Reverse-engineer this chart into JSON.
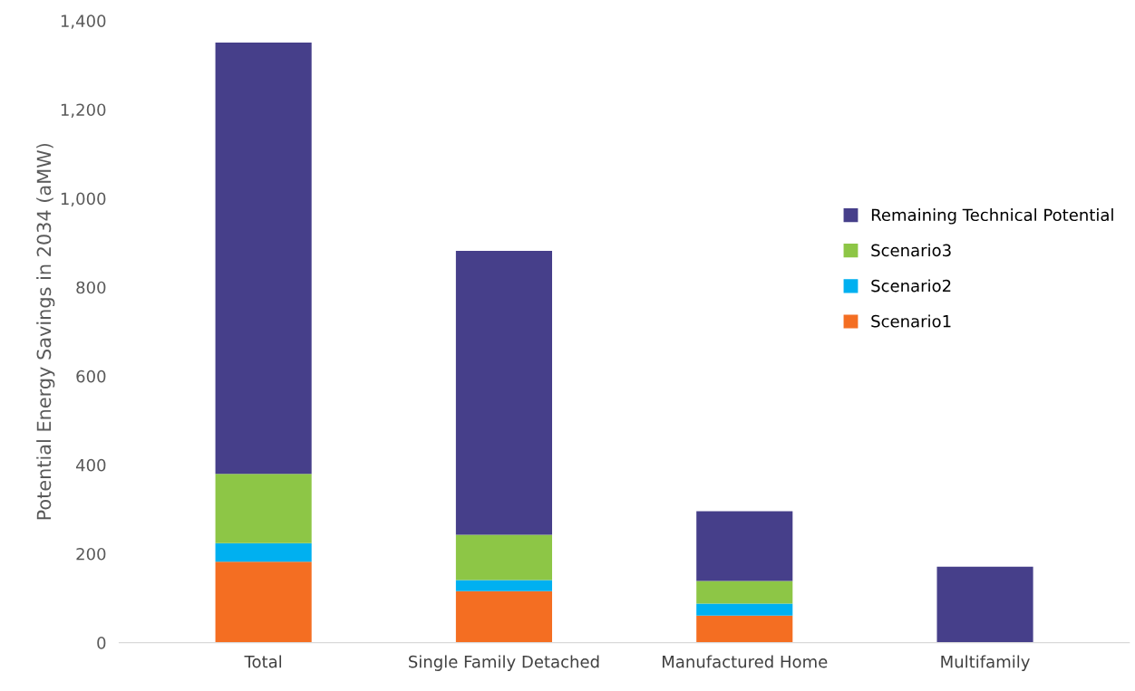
{
  "chart_data": {
    "type": "bar",
    "stacked": true,
    "ylabel": "Potential Energy Savings in 2034 (aMW)",
    "categories": [
      "Total",
      "Single Family Detached",
      "Manufactured Home",
      "Multifamily"
    ],
    "series": [
      {
        "name": "Scenario1",
        "color": "#f46e22",
        "values": [
          182,
          116,
          61,
          0
        ]
      },
      {
        "name": "Scenario2",
        "color": "#00b0f0",
        "values": [
          42,
          25,
          27,
          0
        ]
      },
      {
        "name": "Scenario3",
        "color": "#8dc646",
        "values": [
          156,
          102,
          51,
          0
        ]
      },
      {
        "name": "Remaining Technical Potential",
        "color": "#463f8a",
        "values": [
          971,
          639,
          157,
          171
        ]
      }
    ],
    "ylim": [
      0,
      1400
    ],
    "yticks": [
      0,
      {
        "value": 200,
        "label": "200"
      },
      {
        "value": 400,
        "label": "400"
      },
      {
        "value": 600,
        "label": "600"
      },
      {
        "value": 800,
        "label": "800"
      },
      {
        "value": 1000,
        "label": "1,000"
      },
      {
        "value": 1200,
        "label": "1,200"
      },
      {
        "value": 1400,
        "label": "1,400"
      }
    ],
    "grid": false,
    "legend": "right"
  }
}
